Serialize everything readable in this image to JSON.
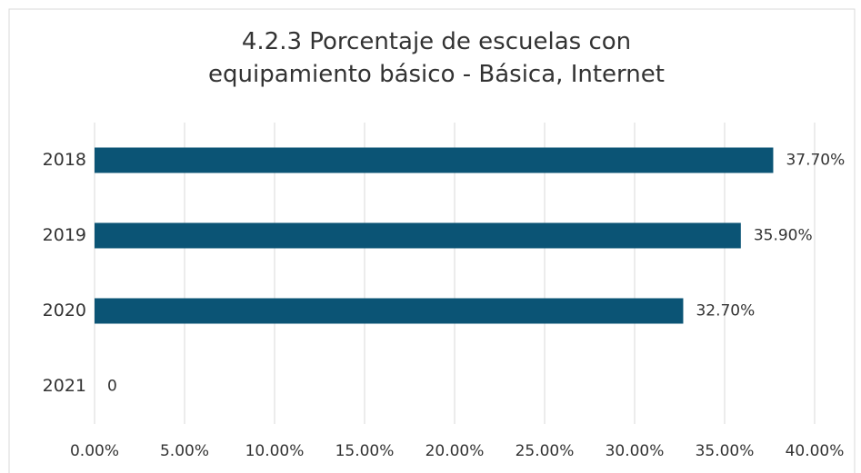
{
  "chart_data": {
    "type": "bar",
    "orientation": "horizontal",
    "title": "4.2.3 Porcentaje de escuelas con equipamiento básico - Básica, Internet",
    "categories": [
      "2018",
      "2019",
      "2020",
      "2021"
    ],
    "values": [
      37.7,
      35.9,
      32.7,
      0
    ],
    "value_labels": [
      "37.70%",
      "35.90%",
      "32.70%",
      "0"
    ],
    "color": "#0b5475",
    "xlim": [
      0,
      40
    ],
    "xticks": [
      {
        "value": 0,
        "label": "0.00%"
      },
      {
        "value": 5,
        "label": "5.00%"
      },
      {
        "value": 10,
        "label": "10.00%"
      },
      {
        "value": 15,
        "label": "15.00%"
      },
      {
        "value": 20,
        "label": "20.00%"
      },
      {
        "value": 25,
        "label": "25.00%"
      },
      {
        "value": 30,
        "label": "30.00%"
      },
      {
        "value": 35,
        "label": "35.00%"
      },
      {
        "value": 40,
        "label": "40.00%"
      }
    ],
    "grid": true
  }
}
